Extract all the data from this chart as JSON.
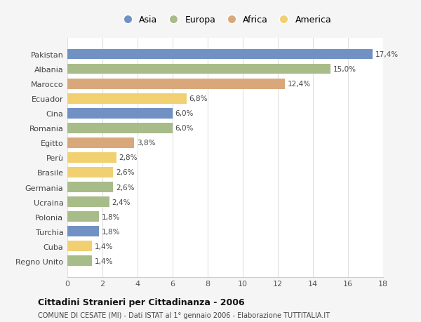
{
  "countries": [
    "Pakistan",
    "Albania",
    "Marocco",
    "Ecuador",
    "Cina",
    "Romania",
    "Egitto",
    "Perù",
    "Brasile",
    "Germania",
    "Ucraina",
    "Polonia",
    "Turchia",
    "Cuba",
    "Regno Unito"
  ],
  "values": [
    17.4,
    15.0,
    12.4,
    6.8,
    6.0,
    6.0,
    3.8,
    2.8,
    2.6,
    2.6,
    2.4,
    1.8,
    1.8,
    1.4,
    1.4
  ],
  "labels": [
    "17,4%",
    "15,0%",
    "12,4%",
    "6,8%",
    "6,0%",
    "6,0%",
    "3,8%",
    "2,8%",
    "2,6%",
    "2,6%",
    "2,4%",
    "1,8%",
    "1,8%",
    "1,4%",
    "1,4%"
  ],
  "continents": [
    "Asia",
    "Europa",
    "Africa",
    "America",
    "Asia",
    "Europa",
    "Africa",
    "America",
    "America",
    "Europa",
    "Europa",
    "Europa",
    "Asia",
    "America",
    "Europa"
  ],
  "colors": {
    "Asia": "#7191c4",
    "Europa": "#a8bc8a",
    "Africa": "#d9a87a",
    "America": "#f0d070"
  },
  "legend_order": [
    "Asia",
    "Europa",
    "Africa",
    "America"
  ],
  "title": "Cittadini Stranieri per Cittadinanza - 2006",
  "subtitle": "COMUNE DI CESATE (MI) - Dati ISTAT al 1° gennaio 2006 - Elaborazione TUTTITALIA.IT",
  "xlim": [
    0,
    18
  ],
  "xticks": [
    0,
    2,
    4,
    6,
    8,
    10,
    12,
    14,
    16,
    18
  ],
  "plot_bg": "#ffffff",
  "fig_bg": "#f5f5f5",
  "grid_color": "#e0e0e0",
  "bar_height": 0.7
}
